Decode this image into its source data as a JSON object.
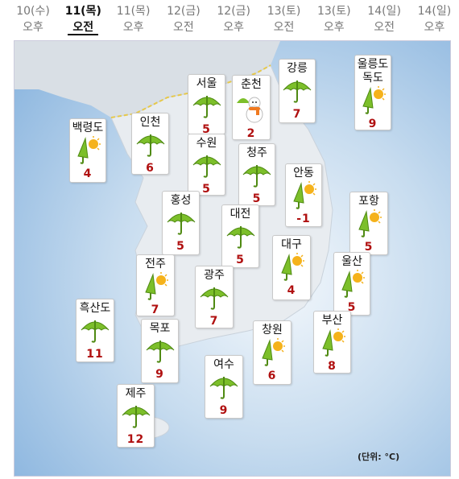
{
  "tabs": [
    {
      "day": "10(수)",
      "period": "오후"
    },
    {
      "day": "11(목)",
      "period": "오전"
    },
    {
      "day": "11(목)",
      "period": "오후"
    },
    {
      "day": "12(금)",
      "period": "오전"
    },
    {
      "day": "12(금)",
      "period": "오후"
    },
    {
      "day": "13(토)",
      "period": "오전"
    },
    {
      "day": "13(토)",
      "period": "오후"
    },
    {
      "day": "14(일)",
      "period": "오전"
    },
    {
      "day": "14(일)",
      "period": "오후"
    }
  ],
  "cities": [
    {
      "name": "백령도",
      "temp": 4
    },
    {
      "name": "인천",
      "temp": 6
    },
    {
      "name": "서울",
      "temp": 5
    },
    {
      "name": "수원",
      "temp": 5
    },
    {
      "name": "춘천",
      "temp": 2
    },
    {
      "name": "강릉",
      "temp": 7
    },
    {
      "name": "울릉도\n독도",
      "temp": 9
    },
    {
      "name": "청주",
      "temp": 5
    },
    {
      "name": "안동",
      "temp": -1
    },
    {
      "name": "홍성",
      "temp": 5
    },
    {
      "name": "대전",
      "temp": 5
    },
    {
      "name": "포항",
      "temp": 5
    },
    {
      "name": "대구",
      "temp": 4
    },
    {
      "name": "전주",
      "temp": 7
    },
    {
      "name": "광주",
      "temp": 7
    },
    {
      "name": "울산",
      "temp": 5
    },
    {
      "name": "흑산도",
      "temp": 11
    },
    {
      "name": "목포",
      "temp": 9
    },
    {
      "name": "창원",
      "temp": 6
    },
    {
      "name": "부산",
      "temp": 8
    },
    {
      "name": "여수",
      "temp": 9
    },
    {
      "name": "제주",
      "temp": 12
    }
  ],
  "unit_note": "(단위: °C)"
}
